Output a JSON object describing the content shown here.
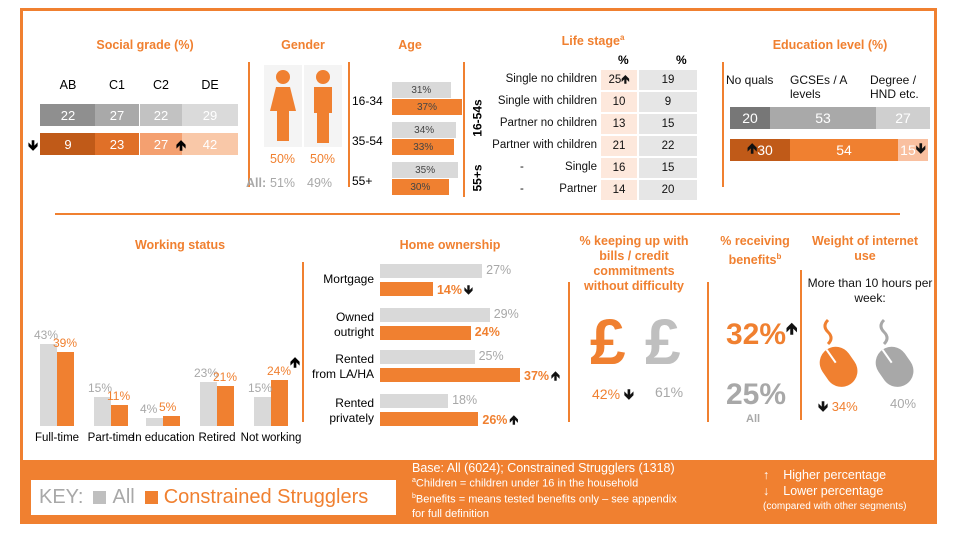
{
  "colors": {
    "accent": "#f08030",
    "all": "#d9d9d9",
    "segment": "#f08030"
  },
  "social_grade": {
    "title": "Social grade (%)",
    "categories": [
      "AB",
      "C1",
      "C2",
      "DE"
    ],
    "all": [
      "22",
      "27",
      "22",
      "29"
    ],
    "seg": [
      "9",
      "23",
      "27",
      "42"
    ]
  },
  "gender": {
    "title": "Gender",
    "seg": [
      "50%",
      "50%"
    ],
    "all_label": "All:",
    "all": [
      "51%",
      "49%"
    ]
  },
  "age": {
    "title": "Age",
    "groups": [
      "16-34",
      "35-54",
      "55+"
    ],
    "all": [
      "31%",
      "34%",
      "35%"
    ],
    "seg": [
      "37%",
      "33%",
      "30%"
    ]
  },
  "life_stage": {
    "title": "Life stage",
    "title_sup": "a",
    "col_headers": [
      "%",
      "%"
    ],
    "group_labels": [
      "16-54s",
      "55+s"
    ],
    "rows": [
      {
        "label": "Single no children",
        "seg": "25",
        "all": "19"
      },
      {
        "label": "Single with children",
        "seg": "10",
        "all": "9"
      },
      {
        "label": "Partner no children",
        "seg": "13",
        "all": "15"
      },
      {
        "label": "Partner with children",
        "seg": "21",
        "all": "22"
      },
      {
        "dash": "-",
        "label": "Single",
        "seg": "16",
        "all": "15"
      },
      {
        "dash": "-",
        "label": "Partner",
        "seg": "14",
        "all": "20"
      }
    ]
  },
  "education": {
    "title": "Education level (%)",
    "categories": [
      "No quals",
      "GCSEs / A levels",
      "Degree / HND etc."
    ],
    "all": [
      "20",
      "53",
      "27"
    ],
    "seg": [
      "30",
      "54",
      "15"
    ]
  },
  "chart_data": [
    {
      "type": "bar",
      "title": "Working status",
      "categories": [
        "Full-time",
        "Part-time",
        "In education",
        "Retired",
        "Not working"
      ],
      "series": [
        {
          "name": "All",
          "values": [
            43,
            15,
            4,
            23,
            15
          ]
        },
        {
          "name": "Constrained Strugglers",
          "values": [
            39,
            11,
            5,
            21,
            24
          ]
        }
      ]
    },
    {
      "type": "bar",
      "title": "Home ownership",
      "categories": [
        "Mortgage",
        "Owned outright",
        "Rented from LA/HA",
        "Rented privately"
      ],
      "series": [
        {
          "name": "All",
          "values": [
            27,
            29,
            25,
            18
          ]
        },
        {
          "name": "Constrained Strugglers",
          "values": [
            14,
            24,
            37,
            26
          ]
        }
      ]
    }
  ],
  "working_labels": [
    "Full-time",
    "Part-time",
    "In education",
    "Retired",
    "Not working"
  ],
  "home_labels": [
    "Mortgage",
    "Owned\noutright",
    "Rented\nfrom LA/HA",
    "Rented\nprivately"
  ],
  "bills": {
    "title": "% keeping up with bills / credit commitments without difficulty",
    "seg": "42%",
    "all": "61%",
    "icon": "£"
  },
  "benefits": {
    "title": "% receiving benefits",
    "title_sup": "b",
    "seg": "32%",
    "all": "25%",
    "all_label": "All"
  },
  "internet": {
    "title": "Weight of internet use",
    "subtitle": "More than 10 hours per week:",
    "seg": "34%",
    "all": "40%"
  },
  "footer": {
    "key_label": "KEY:",
    "key_all": "All",
    "key_seg": "Constrained Strugglers",
    "base": "Base: All (6024); Constrained Strugglers (1318)",
    "note_a": "Children = children under 16 in the household",
    "note_b": "Benefits = means tested benefits only – see appendix for full definition",
    "higher": "Higher percentage",
    "lower": "Lower percentage",
    "compared": "(compared with other segments)"
  }
}
